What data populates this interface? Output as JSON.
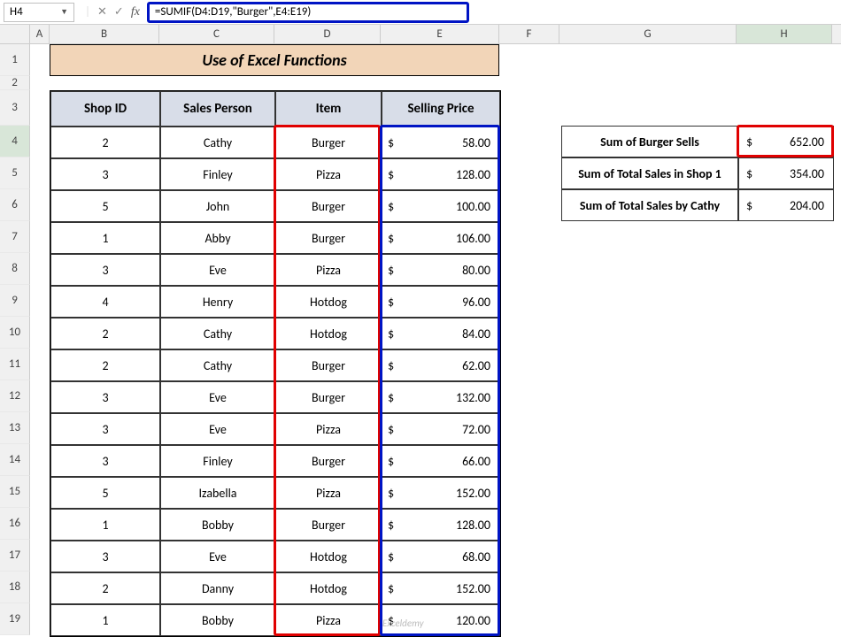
{
  "formula_bar": {
    "name_box": "H4",
    "formula": "=SUMIF(D4:D19,\"Burger\",E4:E19)"
  },
  "columns": [
    "A",
    "B",
    "C",
    "D",
    "E",
    "F",
    "G",
    "H"
  ],
  "rows": [
    "1",
    "2",
    "3",
    "4",
    "5",
    "6",
    "7",
    "8",
    "9",
    "10",
    "11",
    "12",
    "13",
    "14",
    "15",
    "16",
    "17",
    "18",
    "19"
  ],
  "title": "Use of Excel Functions",
  "headers": {
    "shop_id": "Shop ID",
    "sales_person": "Sales Person",
    "item": "Item",
    "selling_price": "Selling Price"
  },
  "table": [
    {
      "shop": "2",
      "person": "Cathy",
      "item": "Burger",
      "price": "58.00"
    },
    {
      "shop": "3",
      "person": "Finley",
      "item": "Pizza",
      "price": "128.00"
    },
    {
      "shop": "5",
      "person": "John",
      "item": "Burger",
      "price": "100.00"
    },
    {
      "shop": "1",
      "person": "Abby",
      "item": "Burger",
      "price": "106.00"
    },
    {
      "shop": "3",
      "person": "Eve",
      "item": "Pizza",
      "price": "80.00"
    },
    {
      "shop": "4",
      "person": "Henry",
      "item": "Hotdog",
      "price": "96.00"
    },
    {
      "shop": "2",
      "person": "Cathy",
      "item": "Hotdog",
      "price": "84.00"
    },
    {
      "shop": "2",
      "person": "Cathy",
      "item": "Burger",
      "price": "62.00"
    },
    {
      "shop": "3",
      "person": "Eve",
      "item": "Burger",
      "price": "132.00"
    },
    {
      "shop": "3",
      "person": "Eve",
      "item": "Pizza",
      "price": "72.00"
    },
    {
      "shop": "3",
      "person": "Finley",
      "item": "Burger",
      "price": "66.00"
    },
    {
      "shop": "5",
      "person": "Izabella",
      "item": "Pizza",
      "price": "152.00"
    },
    {
      "shop": "1",
      "person": "Bobby",
      "item": "Burger",
      "price": "128.00"
    },
    {
      "shop": "3",
      "person": "Eve",
      "item": "Hotdog",
      "price": "68.00"
    },
    {
      "shop": "2",
      "person": "Danny",
      "item": "Hotdog",
      "price": "152.00"
    },
    {
      "shop": "1",
      "person": "Bobby",
      "item": "Pizza",
      "price": "120.00"
    }
  ],
  "currency": "$",
  "summary": [
    {
      "label": "Sum of Burger Sells",
      "value": "652.00"
    },
    {
      "label": "Sum of Total Sales in Shop 1",
      "value": "354.00"
    },
    {
      "label": "Sum of Total Sales by Cathy",
      "value": "204.00"
    }
  ],
  "watermark": "Exceldemy"
}
